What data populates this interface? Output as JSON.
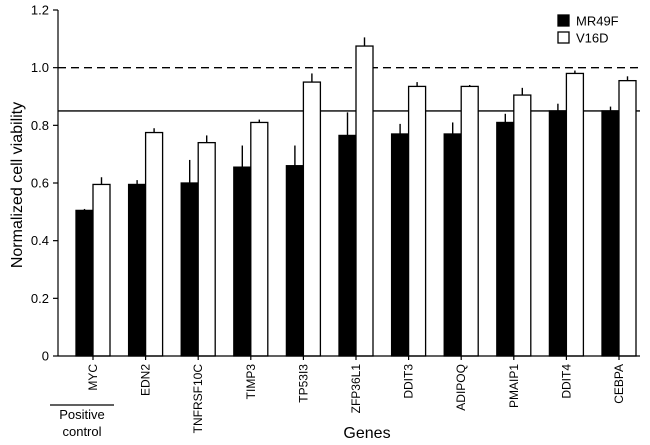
{
  "chart_data": {
    "type": "bar",
    "xlabel": "Genes",
    "ylabel": "Normalized cell viability",
    "ylim": [
      0,
      1.2
    ],
    "yticks": [
      "0",
      "0.2",
      "0.4",
      "0.6",
      "0.8",
      "1.0",
      "1.2"
    ],
    "categories": [
      "MYC",
      "EDN2",
      "TNFRSF10C",
      "TIMP3",
      "TP53I3",
      "ZFP36L1",
      "DDIT3",
      "ADIPOQ",
      "PMAIP1",
      "DDIT4",
      "CEBPA"
    ],
    "series": [
      {
        "name": "MR49F",
        "color": "#000000",
        "values": [
          0.505,
          0.595,
          0.6,
          0.655,
          0.66,
          0.765,
          0.77,
          0.77,
          0.81,
          0.85,
          0.85
        ],
        "errors": [
          0.005,
          0.015,
          0.08,
          0.075,
          0.07,
          0.08,
          0.035,
          0.04,
          0.03,
          0.025,
          0.015
        ]
      },
      {
        "name": "V16D",
        "color": "#ffffff",
        "values": [
          0.595,
          0.775,
          0.74,
          0.81,
          0.95,
          1.075,
          0.935,
          0.935,
          0.905,
          0.98,
          0.955
        ],
        "errors": [
          0.025,
          0.015,
          0.025,
          0.01,
          0.03,
          0.03,
          0.015,
          0.005,
          0.025,
          0.01,
          0.015
        ]
      }
    ],
    "reference_lines": [
      {
        "value": 1.0,
        "style": "dashed"
      },
      {
        "value": 0.85,
        "style": "solid"
      }
    ],
    "annotation": "Positive\ncontrol",
    "legend_position": "top-right"
  }
}
